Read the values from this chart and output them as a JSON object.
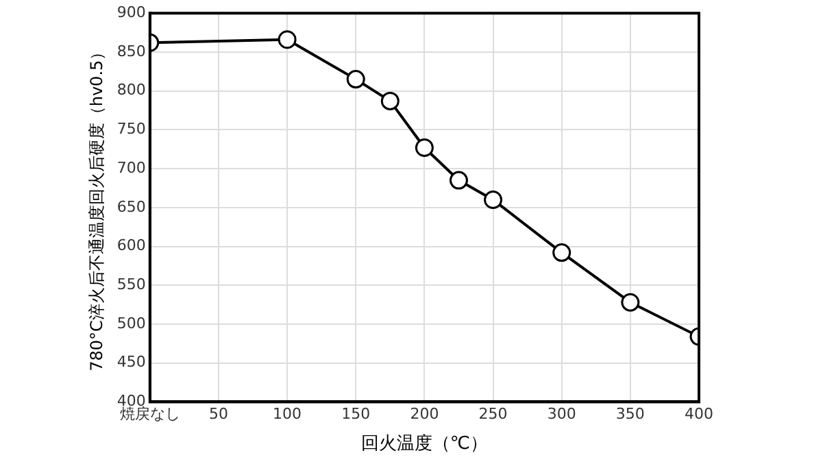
{
  "chart_data": {
    "type": "line",
    "xlabel": "回火温度（℃）",
    "ylabel": "780°C淬火后不通温度回火后硬度（hv0.5）",
    "x": [
      0,
      100,
      150,
      175,
      200,
      225,
      250,
      300,
      350,
      400
    ],
    "series": [
      {
        "color": "#000000",
        "values": [
          862,
          866,
          815,
          787,
          727,
          685,
          660,
          592,
          528,
          484
        ]
      }
    ],
    "xlim": [
      0,
      400
    ],
    "xticks": [
      {
        "value": 0,
        "label": "焼戻なし"
      },
      50,
      100,
      150,
      200,
      250,
      300,
      350,
      400
    ],
    "ylim": [
      400,
      900
    ],
    "yticks": [
      400,
      450,
      500,
      550,
      600,
      650,
      700,
      750,
      800,
      850,
      900
    ],
    "grid": true,
    "legend": false,
    "marker": "circle",
    "line_style": "solid"
  }
}
